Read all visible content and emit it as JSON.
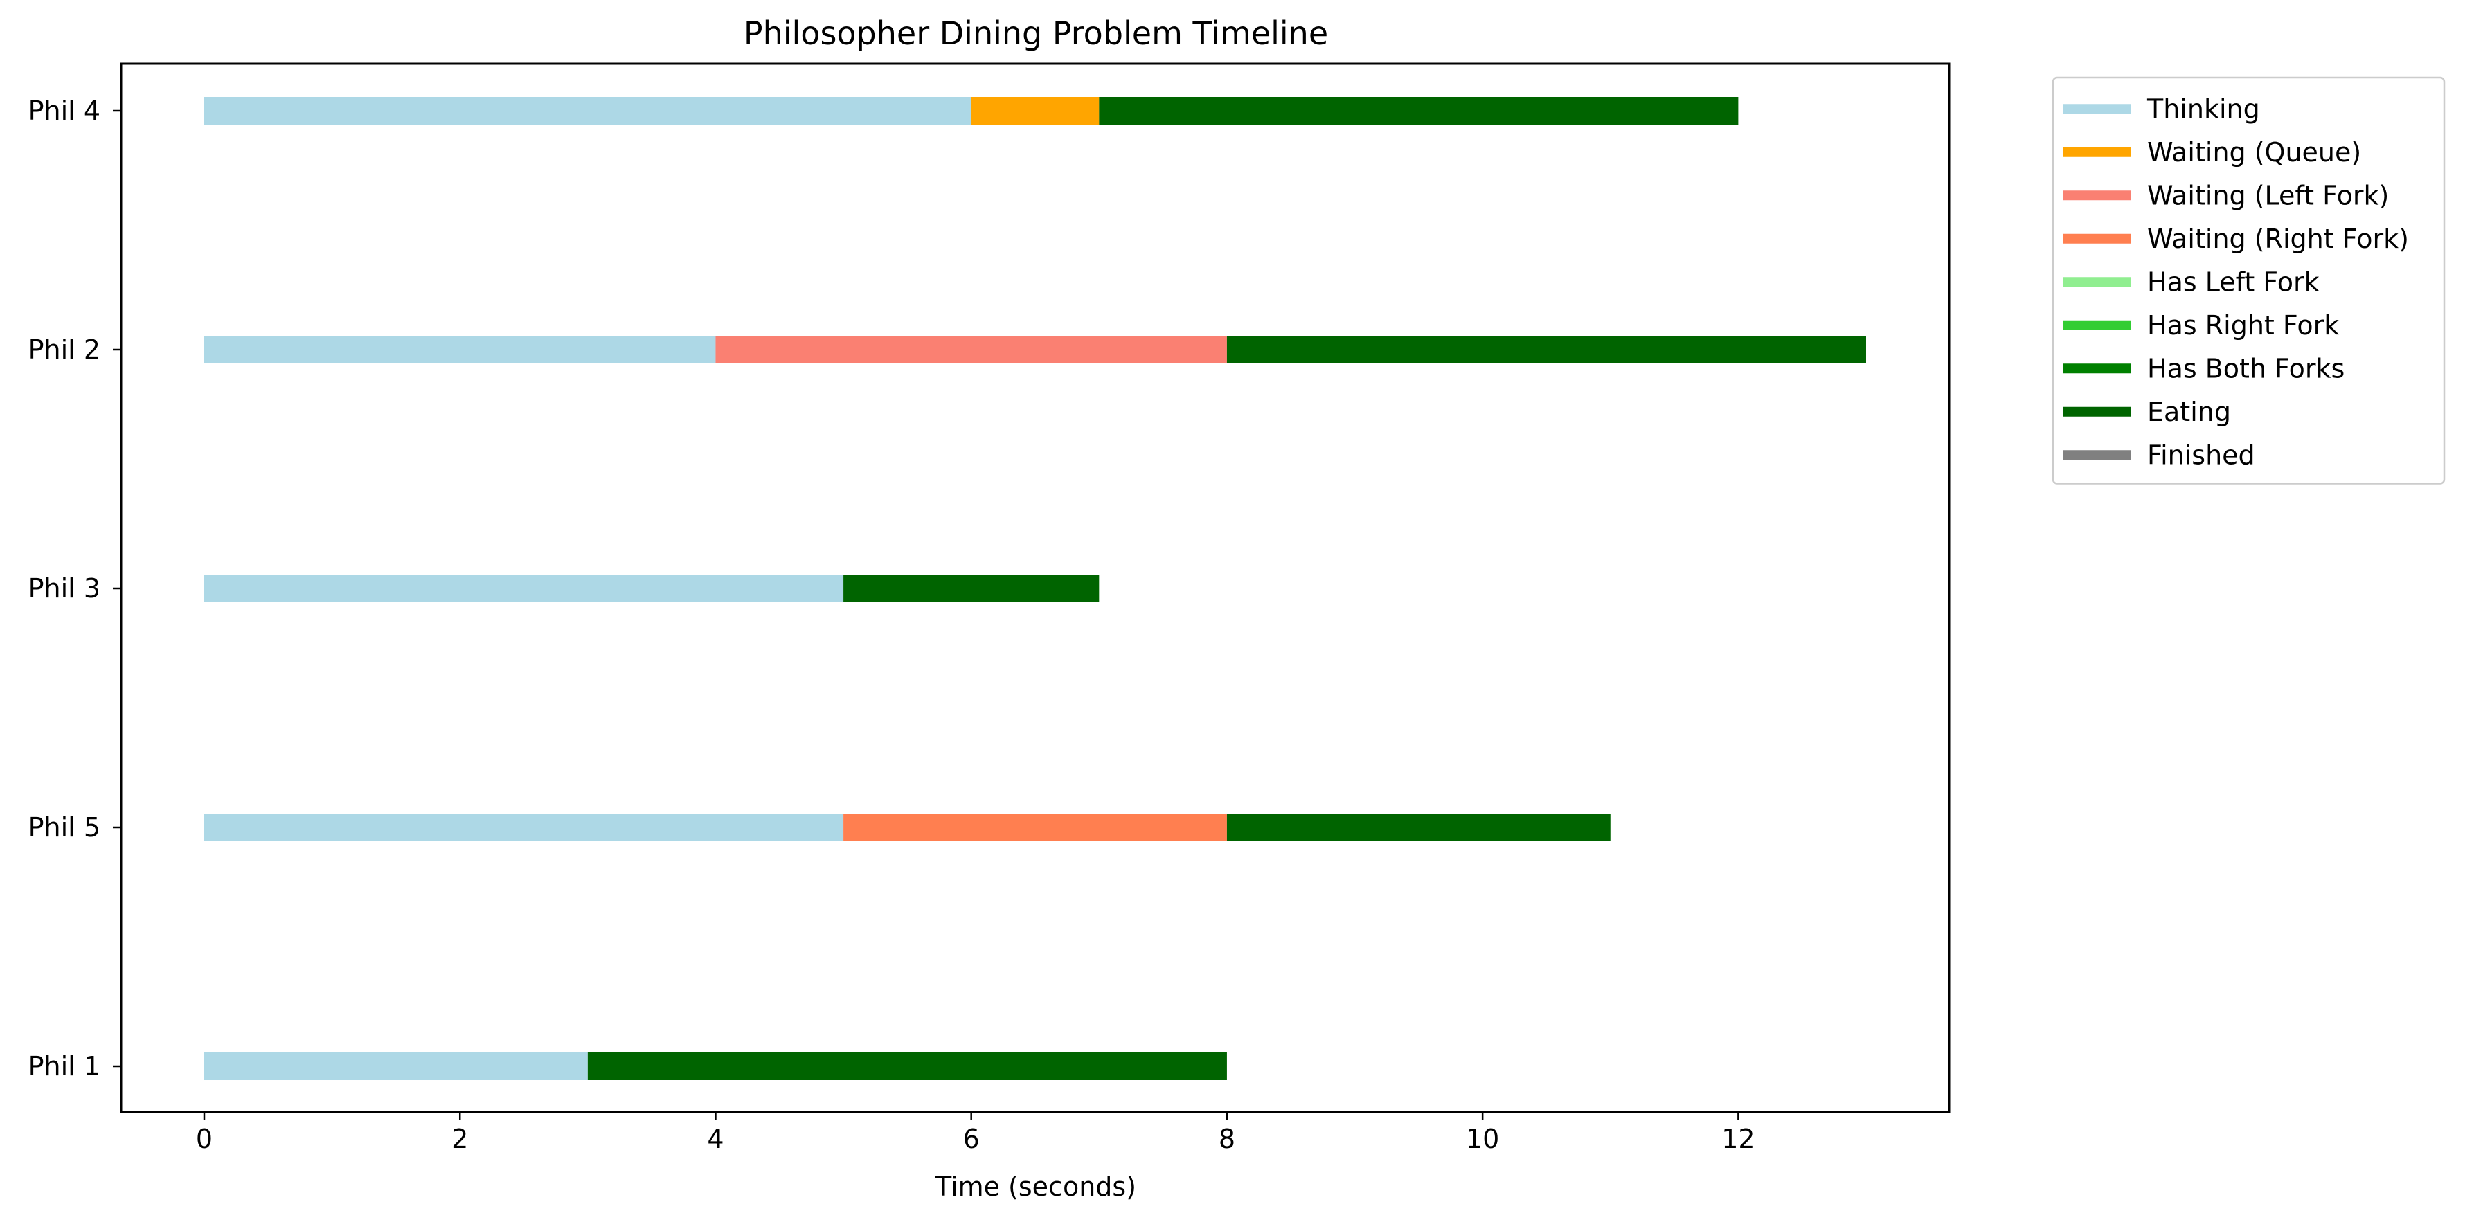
{
  "chart_data": {
    "type": "bar",
    "orientation": "horizontal",
    "title": "Philosopher Dining Problem Timeline",
    "xlabel": "Time (seconds)",
    "ylabel": "",
    "xlim": [
      -0.65,
      13.65
    ],
    "xticks": [
      0,
      2,
      4,
      6,
      8,
      10,
      12
    ],
    "categories": [
      "Phil 4",
      "Phil 2",
      "Phil 3",
      "Phil 5",
      "Phil 1"
    ],
    "grid": false,
    "legend_position": "outside-top-right",
    "legend": [
      {
        "label": "Thinking",
        "color": "#add8e6"
      },
      {
        "label": "Waiting (Queue)",
        "color": "#ffa500"
      },
      {
        "label": "Waiting (Left Fork)",
        "color": "#fa8072"
      },
      {
        "label": "Waiting (Right Fork)",
        "color": "#ff7f50"
      },
      {
        "label": "Has Left Fork",
        "color": "#90ee90"
      },
      {
        "label": "Has Right Fork",
        "color": "#32cd32"
      },
      {
        "label": "Has Both Forks",
        "color": "#008000"
      },
      {
        "label": "Eating",
        "color": "#006400"
      },
      {
        "label": "Finished",
        "color": "#808080"
      }
    ],
    "segments": [
      {
        "philosopher": "Phil 4",
        "state": "Thinking",
        "start": 0,
        "end": 6
      },
      {
        "philosopher": "Phil 4",
        "state": "Waiting (Queue)",
        "start": 6,
        "end": 7
      },
      {
        "philosopher": "Phil 4",
        "state": "Eating",
        "start": 7,
        "end": 12
      },
      {
        "philosopher": "Phil 2",
        "state": "Thinking",
        "start": 0,
        "end": 4
      },
      {
        "philosopher": "Phil 2",
        "state": "Waiting (Left Fork)",
        "start": 4,
        "end": 8
      },
      {
        "philosopher": "Phil 2",
        "state": "Eating",
        "start": 8,
        "end": 13
      },
      {
        "philosopher": "Phil 3",
        "state": "Thinking",
        "start": 0,
        "end": 5
      },
      {
        "philosopher": "Phil 3",
        "state": "Eating",
        "start": 5,
        "end": 7
      },
      {
        "philosopher": "Phil 5",
        "state": "Thinking",
        "start": 0,
        "end": 5
      },
      {
        "philosopher": "Phil 5",
        "state": "Waiting (Right Fork)",
        "start": 5,
        "end": 8
      },
      {
        "philosopher": "Phil 5",
        "state": "Eating",
        "start": 8,
        "end": 11
      },
      {
        "philosopher": "Phil 1",
        "state": "Thinking",
        "start": 0,
        "end": 3
      },
      {
        "philosopher": "Phil 1",
        "state": "Eating",
        "start": 3,
        "end": 8
      }
    ]
  }
}
